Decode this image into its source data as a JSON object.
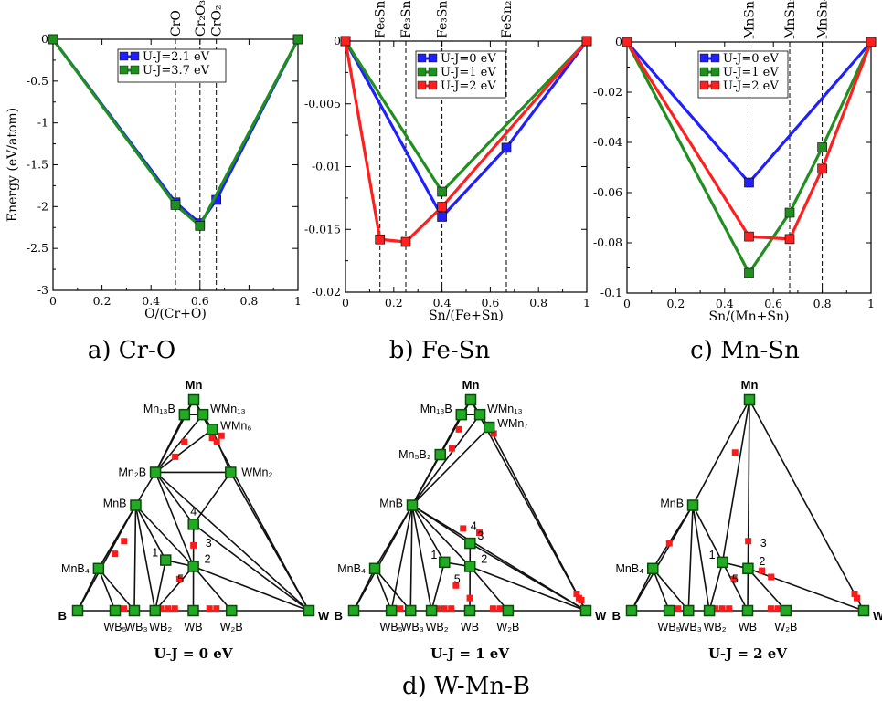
{
  "chart_data": [
    {
      "type": "line",
      "caption": "a) Cr-O",
      "xlabel": "O/(Cr+O)",
      "ylabel": "Energy (eV/atom)",
      "xlim": [
        0,
        1
      ],
      "ylim": [
        -3,
        0
      ],
      "xticks": [
        "0",
        "0.2",
        "0.4",
        "0.6",
        "0.8",
        "1"
      ],
      "yticks": [
        "0",
        "-0.5",
        "-1",
        "-1.5",
        "-2",
        "-2.5",
        "-3"
      ],
      "legend": "top-center",
      "phase_lines": [
        {
          "x": 0.5,
          "label": "CrO"
        },
        {
          "x": 0.6,
          "label": "Cr₂O₃"
        },
        {
          "x": 0.6667,
          "label": "CrO₂"
        }
      ],
      "series": [
        {
          "name": "U-J=2.1 eV",
          "color": "#1f1fff",
          "x": [
            0,
            0.5,
            0.6,
            0.6667,
            1
          ],
          "y": [
            0,
            -1.95,
            -2.2,
            -1.92,
            0
          ]
        },
        {
          "name": "U-J=3.7 eV",
          "color": "#1f8f1f",
          "x": [
            0,
            0.5,
            0.6,
            1
          ],
          "y": [
            0,
            -1.98,
            -2.23,
            0
          ]
        }
      ]
    },
    {
      "type": "line",
      "caption": "b) Fe-Sn",
      "xlabel": "Sn/(Fe+Sn)",
      "ylabel": "",
      "xlim": [
        0,
        1
      ],
      "ylim": [
        -0.02,
        0
      ],
      "xticks": [
        "0",
        "0.2",
        "0.4",
        "0.6",
        "0.8",
        "1"
      ],
      "yticks": [
        "",
        "-0.005",
        "-0.01",
        "-0.015",
        "-0.02"
      ],
      "legend": "top-center",
      "phase_lines": [
        {
          "x": 0.1429,
          "label": "Fe₆Sn"
        },
        {
          "x": 0.25,
          "label": "Fe₃Sn"
        },
        {
          "x": 0.4,
          "label": "Fe₃Sn₂"
        },
        {
          "x": 0.6667,
          "label": "FeSn₂"
        }
      ],
      "series": [
        {
          "name": "U-J=0 eV",
          "color": "#1f1fff",
          "x": [
            0,
            0.4,
            0.6667,
            1
          ],
          "y": [
            0,
            -0.014,
            -0.0085,
            0
          ]
        },
        {
          "name": "U-J=1 eV",
          "color": "#1f8f1f",
          "x": [
            0,
            0.4,
            1
          ],
          "y": [
            0,
            -0.012,
            0
          ]
        },
        {
          "name": "U-J=2 eV",
          "color": "#ff1f1f",
          "x": [
            0,
            0.1429,
            0.25,
            0.4,
            1
          ],
          "y": [
            0,
            -0.0158,
            -0.016,
            -0.0132,
            0
          ]
        }
      ]
    },
    {
      "type": "line",
      "caption": "c) Mn-Sn",
      "xlabel": "Sn/(Mn+Sn)",
      "ylabel": "",
      "xlim": [
        0,
        1
      ],
      "ylim": [
        -0.1,
        0
      ],
      "xticks": [
        "0",
        "0.2",
        "0.4",
        "0.6",
        "0.8",
        "1"
      ],
      "yticks": [
        "",
        "-0.02",
        "-0.04",
        "-0.06",
        "-0.08",
        "-0.1"
      ],
      "legend": "top-center",
      "phase_lines": [
        {
          "x": 0.5,
          "label": "MnSn"
        },
        {
          "x": 0.6667,
          "label": "MnSn₂"
        },
        {
          "x": 0.8,
          "label": "MnSn₄"
        }
      ],
      "series": [
        {
          "name": "U-J=0 eV",
          "color": "#1f1fff",
          "x": [
            0,
            0.5,
            1
          ],
          "y": [
            0,
            -0.056,
            0
          ]
        },
        {
          "name": "U-J=1 eV",
          "color": "#1f8f1f",
          "x": [
            0,
            0.5,
            0.6667,
            0.8,
            1
          ],
          "y": [
            0,
            -0.092,
            -0.068,
            -0.042,
            0
          ]
        },
        {
          "name": "U-J=2 eV",
          "color": "#ff1f1f",
          "x": [
            0,
            0.5,
            0.6667,
            0.8,
            1
          ],
          "y": [
            0,
            -0.0775,
            -0.0785,
            -0.0505,
            0
          ]
        }
      ]
    },
    {
      "type": "ternary",
      "caption": "d) W-Mn-B",
      "corners": [
        "Mn",
        "B",
        "W"
      ],
      "panels": [
        {
          "title": "U-J = 0 eV",
          "stable": [
            {
              "id": "Mn",
              "label": ""
            },
            {
              "id": "Mn13B",
              "label": "Mn₁₃B"
            },
            {
              "id": "WMn13",
              "label": "WMn₁₃"
            },
            {
              "id": "WMn6",
              "label": "WMn₆"
            },
            {
              "id": "Mn2B",
              "label": "Mn₂B"
            },
            {
              "id": "WMn2",
              "label": "WMn₂"
            },
            {
              "id": "MnB",
              "label": "MnB"
            },
            {
              "id": "P4",
              "label": "4"
            },
            {
              "id": "P1",
              "label": "1"
            },
            {
              "id": "P2",
              "label": "2"
            },
            {
              "id": "MnB4",
              "label": "MnB₄"
            },
            {
              "id": "B",
              "label": ""
            },
            {
              "id": "WB5",
              "label": "WB₅"
            },
            {
              "id": "WB3",
              "label": "WB₃"
            },
            {
              "id": "WB2",
              "label": "WB₂"
            },
            {
              "id": "WB",
              "label": "WB"
            },
            {
              "id": "W2B",
              "label": "W₂B"
            },
            {
              "id": "W",
              "label": ""
            }
          ],
          "unstable_labels": [
            "3",
            "5"
          ]
        },
        {
          "title": "U-J = 1 eV",
          "stable": [
            {
              "id": "Mn",
              "label": ""
            },
            {
              "id": "Mn13B",
              "label": "Mn₁₃B"
            },
            {
              "id": "WMn13",
              "label": "WMn₁₃"
            },
            {
              "id": "WMn7",
              "label": "WMn₇"
            },
            {
              "id": "Mn5B2",
              "label": "Mn₅B₂"
            },
            {
              "id": "MnB",
              "label": "MnB"
            },
            {
              "id": "P3",
              "label": "3"
            },
            {
              "id": "P1",
              "label": "1"
            },
            {
              "id": "P2",
              "label": "2"
            },
            {
              "id": "MnB4",
              "label": "MnB₄"
            },
            {
              "id": "B",
              "label": ""
            },
            {
              "id": "WB5",
              "label": "WB₅"
            },
            {
              "id": "WB3",
              "label": "WB₃"
            },
            {
              "id": "WB2",
              "label": "WB₂"
            },
            {
              "id": "WB",
              "label": "WB"
            },
            {
              "id": "W2B",
              "label": "W₂B"
            },
            {
              "id": "W",
              "label": ""
            }
          ],
          "unstable_labels": [
            "4",
            "5"
          ]
        },
        {
          "title": "U-J = 2 eV",
          "stable": [
            {
              "id": "Mn",
              "label": ""
            },
            {
              "id": "MnB",
              "label": "MnB"
            },
            {
              "id": "P1",
              "label": "1"
            },
            {
              "id": "P2",
              "label": "2"
            },
            {
              "id": "MnB4",
              "label": "MnB₄"
            },
            {
              "id": "B",
              "label": ""
            },
            {
              "id": "WB5",
              "label": "WB₅"
            },
            {
              "id": "WB3",
              "label": "WB₃"
            },
            {
              "id": "WB2",
              "label": "WB₂"
            },
            {
              "id": "WB",
              "label": "WB"
            },
            {
              "id": "W2B",
              "label": "W₂B"
            },
            {
              "id": "W",
              "label": ""
            }
          ],
          "unstable_labels": [
            "3",
            "5"
          ]
        }
      ]
    }
  ]
}
